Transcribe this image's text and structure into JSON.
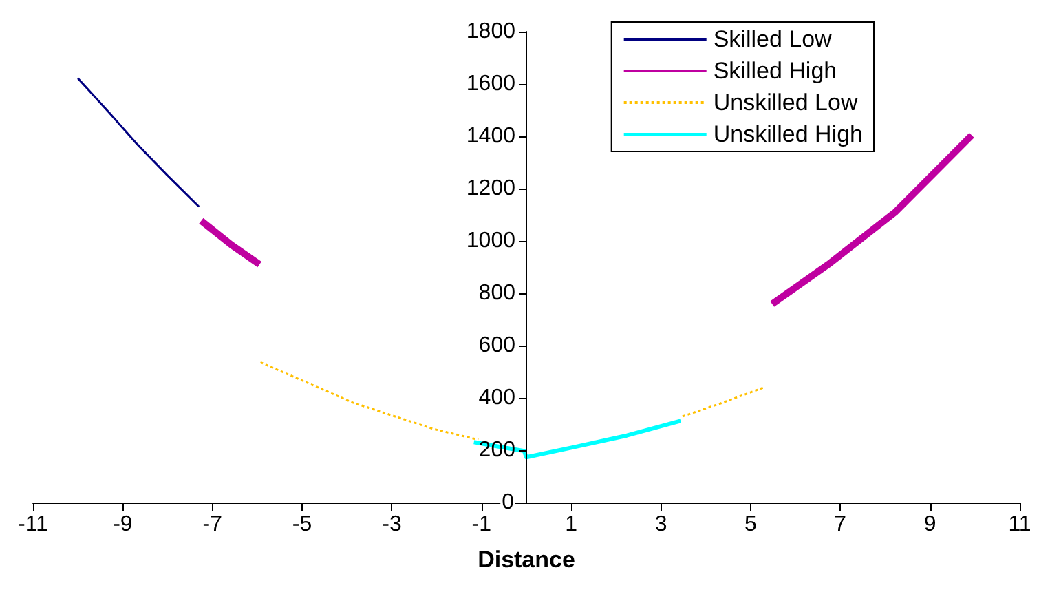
{
  "chart_data": {
    "type": "line",
    "xlabel": "Distance",
    "xlim": [
      -11,
      11
    ],
    "xticks": [
      -11,
      -9,
      -7,
      -5,
      -3,
      -1,
      1,
      3,
      5,
      7,
      9,
      11
    ],
    "ylim": [
      0,
      1800
    ],
    "yticks": [
      0,
      200,
      400,
      600,
      800,
      1000,
      1200,
      1400,
      1600,
      1800
    ],
    "grid": false,
    "legend": "top right",
    "marker": "none",
    "series": [
      {
        "name": "Skilled Low",
        "color": "#000080",
        "line_style": "solid",
        "x": [
          -10.0,
          -9.3,
          -8.68,
          -8.0,
          -7.3
        ],
        "values": [
          1622,
          1490,
          1370,
          1250,
          1131
        ]
      },
      {
        "name": "Skilled High",
        "color": "#bf00a0",
        "line_style": "solid",
        "x": [
          -7.25,
          -6.58,
          -5.95,
          0,
          5.48,
          6.73,
          8.23,
          9.93
        ],
        "values": [
          1077,
          985,
          910,
          null,
          759,
          910,
          1111,
          1404
        ]
      },
      {
        "name": "Unskilled Low",
        "color": "#ffc000",
        "line_style": "dotted",
        "x": [
          -5.93,
          -3.87,
          -2.07,
          -1.07,
          0,
          3.48,
          4.33,
          5.28
        ],
        "values": [
          536,
          382,
          281,
          240,
          null,
          329,
          379,
          439
        ]
      },
      {
        "name": "Unskilled High",
        "color": "#00ffff",
        "line_style": "solid",
        "x": [
          -1.17,
          -0.6,
          -0.05,
          0,
          1.04,
          2.24,
          3.44
        ],
        "values": [
          231,
          213,
          197,
          173,
          211,
          256,
          312
        ]
      }
    ]
  }
}
